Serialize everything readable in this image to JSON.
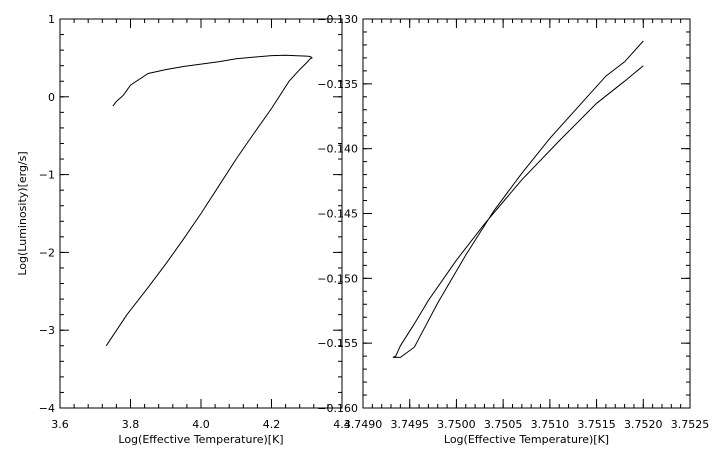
{
  "chart_data": [
    {
      "type": "line",
      "xlabel": "Log(Effective Temperature)[K]",
      "ylabel": "Log(Luminosity)[erg/s]",
      "xlim": [
        3.6,
        4.4
      ],
      "ylim": [
        -4,
        1
      ],
      "x_ticks": [
        "3.6",
        "3.8",
        "4.0",
        "4.2",
        "4.4"
      ],
      "y_ticks": [
        "-4",
        "-3",
        "-2",
        "-1",
        "0",
        "1"
      ],
      "x_tick_values": [
        3.6,
        3.8,
        4.0,
        4.2,
        4.4
      ],
      "y_tick_values": [
        -4,
        -3,
        -2,
        -1,
        0,
        1
      ],
      "x_minor_step": 0.04,
      "y_minor_step": 0.2,
      "grid": false,
      "series": [
        {
          "x": [
            3.731,
            3.79,
            3.85,
            3.9,
            3.95,
            4.0,
            4.05,
            4.1,
            4.15,
            4.2,
            4.25,
            4.28,
            4.3,
            4.31,
            4.315,
            4.313,
            4.305,
            4.29,
            4.265,
            4.24,
            4.2,
            4.15,
            4.1,
            4.05,
            4.0,
            3.95,
            3.9,
            3.85,
            3.8,
            3.78,
            3.76,
            3.75
          ],
          "y": [
            -3.2,
            -2.8,
            -2.45,
            -2.15,
            -1.83,
            -1.5,
            -1.15,
            -0.8,
            -0.47,
            -0.15,
            0.2,
            0.35,
            0.44,
            0.49,
            0.5,
            0.51,
            0.52,
            0.525,
            0.53,
            0.535,
            0.53,
            0.51,
            0.49,
            0.45,
            0.42,
            0.39,
            0.35,
            0.3,
            0.15,
            0.02,
            -0.06,
            -0.12
          ]
        }
      ]
    },
    {
      "type": "line",
      "xlabel": "Log(Effective Temperature)[K]",
      "ylabel": "",
      "xlim": [
        3.749,
        3.7525
      ],
      "ylim": [
        -0.16,
        -0.13
      ],
      "x_ticks": [
        "3.7490",
        "3.7495",
        "3.7500",
        "3.7505",
        "3.7510",
        "3.7515",
        "3.7520",
        "3.7525"
      ],
      "y_ticks": [
        "-0.160",
        "-0.155",
        "-0.150",
        "-0.145",
        "-0.140",
        "-0.135",
        "-0.130"
      ],
      "x_tick_values": [
        3.749,
        3.7495,
        3.75,
        3.7505,
        3.751,
        3.7515,
        3.752,
        3.7525
      ],
      "y_tick_values": [
        -0.16,
        -0.155,
        -0.15,
        -0.145,
        -0.14,
        -0.135,
        -0.13
      ],
      "x_minor_step": 0.0001,
      "y_minor_step": 0.001,
      "grid": false,
      "series": [
        {
          "x": [
            3.752,
            3.7518,
            3.7515,
            3.7511,
            3.7507,
            3.7503,
            3.75,
            3.7497,
            3.74955,
            3.7494,
            3.74935,
            3.74932,
            3.7494,
            3.74955,
            3.7498,
            3.7501,
            3.7504,
            3.7507,
            3.751,
            3.7513,
            3.7516,
            3.7518,
            3.752
          ],
          "y": [
            -0.1336,
            -0.1348,
            -0.1365,
            -0.1394,
            -0.1424,
            -0.1458,
            -0.1486,
            -0.1517,
            -0.1535,
            -0.1552,
            -0.156,
            -0.1561,
            -0.1561,
            -0.1553,
            -0.1519,
            -0.1482,
            -0.1448,
            -0.1419,
            -0.1392,
            -0.1368,
            -0.1344,
            -0.1333,
            -0.1317
          ]
        }
      ]
    }
  ]
}
